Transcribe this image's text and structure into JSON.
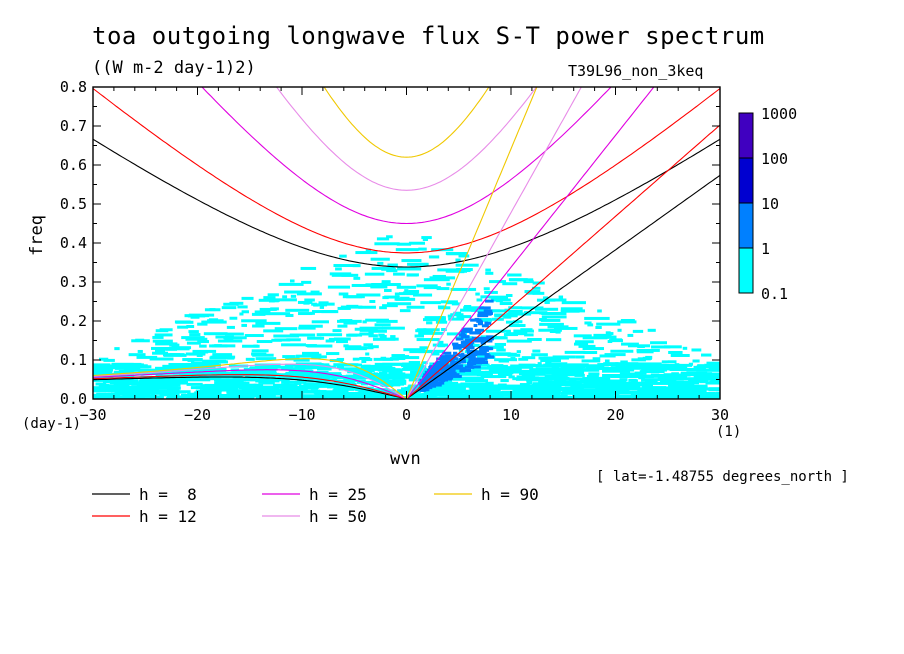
{
  "header": {
    "title": "toa outgoing longwave flux S-T power spectrum",
    "subtitle": "((W m-2 day-1)2)",
    "dataset": "T39L96_non_3keq"
  },
  "axes": {
    "ylabel": "freq",
    "xlabel": "wvn",
    "yunit": "(day-1)",
    "xunit": "(1)",
    "lat_note": "[ lat=-1.48755 degrees_north ]"
  },
  "chart_data": {
    "type": "heatmap",
    "title": "toa outgoing longwave flux S-T power spectrum",
    "units": "((W m-2 day-1)2)",
    "xlabel": "wvn",
    "ylabel": "freq",
    "xlim": [
      -30,
      30
    ],
    "ylim": [
      0,
      0.8
    ],
    "x_ticks": [
      -30,
      -20,
      -10,
      0,
      10,
      20,
      30
    ],
    "y_ticks": [
      0.0,
      0.1,
      0.2,
      0.3,
      0.4,
      0.5,
      0.6,
      0.7,
      0.8
    ],
    "y_tick_labels": [
      "0.0",
      "0.1",
      "0.2",
      "0.3",
      "0.4",
      "0.5",
      "0.6",
      "0.7",
      "0.8"
    ],
    "colorbar": {
      "levels": [
        "0.1",
        "1",
        "10",
        "100",
        "1000"
      ],
      "colors": [
        "#00ffff",
        "#0080ff",
        "#0000d0",
        "#4000c0"
      ]
    },
    "dispersion_curves": [
      {
        "name": "h =  8",
        "value": 8,
        "color": "#000000"
      },
      {
        "name": "h = 12",
        "value": 12,
        "color": "#ff0000"
      },
      {
        "name": "h = 25",
        "value": 25,
        "color": "#e000e0"
      },
      {
        "name": "h = 50",
        "value": 50,
        "color": "#e88ce8"
      },
      {
        "name": "h = 90",
        "value": 90,
        "color": "#f0c800"
      }
    ],
    "power_regions": [
      {
        "level": "0.1-1",
        "x": [
          -30,
          30
        ],
        "y": [
          0.0,
          0.45
        ],
        "note": "broad background, dense near low freq"
      },
      {
        "level": "1-10",
        "x": [
          2,
          8
        ],
        "y": [
          0.0,
          0.2
        ],
        "note": "Kelvin-wave band along positive wavenumbers"
      }
    ]
  }
}
